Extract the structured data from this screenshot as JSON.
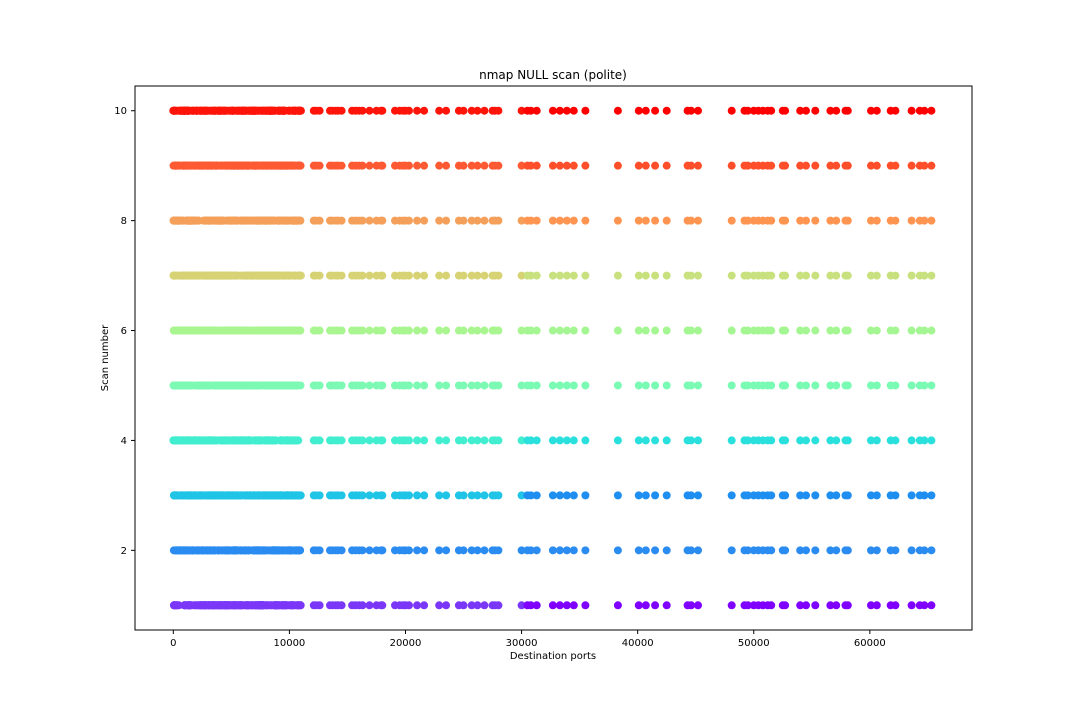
{
  "chart_data": {
    "type": "scatter",
    "title": "nmap NULL scan (polite)",
    "xlabel": "Destination ports",
    "ylabel": "Scan number",
    "xlim": [
      -3300,
      68800
    ],
    "ylim": [
      0.55,
      10.45
    ],
    "xticks": [
      0,
      10000,
      20000,
      30000,
      40000,
      50000,
      60000
    ],
    "yticks": [
      2,
      4,
      6,
      8,
      10
    ],
    "grid": false,
    "legend": "none",
    "colormap": "rainbow",
    "row_colors": {
      "1": "#7b37f7",
      "2": "#2a8cf0",
      "3": "#1fc4e6",
      "4": "#41eecf",
      "5": "#7cf9b2",
      "6": "#a9f590",
      "7": "#d7d375",
      "8": "#f4a05a",
      "9": "#fd5a33",
      "10": "#fe1408"
    },
    "row_colors_high_ports": {
      "1": "#7f00ff",
      "2": "#2a8cf0",
      "3": "#1e8ff0",
      "4": "#2ae0dc",
      "5": "#79fbb4",
      "6": "#a4f692",
      "7": "#c8e17e",
      "8": "#ff9550",
      "9": "#ff4e2a",
      "10": "#ff0000"
    },
    "dense_port_range": [
      0,
      11000
    ],
    "sparse_ports": [
      12100,
      12300,
      12600,
      13500,
      13700,
      14000,
      14200,
      14500,
      15400,
      15700,
      16000,
      16300,
      16900,
      17500,
      17900,
      18000,
      19100,
      19500,
      19800,
      20000,
      20300,
      21000,
      21600,
      22900,
      23500,
      24600,
      25000,
      25700,
      26200,
      26800,
      27500,
      27700,
      28000,
      30000,
      30500,
      30800,
      31300,
      32700,
      33300,
      33900,
      34500,
      35500,
      38300,
      40100,
      40700,
      41500,
      42500,
      44300,
      44600,
      45200,
      48100,
      49200,
      49500,
      50000,
      50400,
      50800,
      51200,
      51500,
      52500,
      52700,
      54000,
      54500,
      55300,
      56600,
      57100,
      57900,
      58100,
      60100,
      60600,
      61800,
      62200,
      63600,
      64300,
      64700,
      65300
    ],
    "scan_numbers": [
      1,
      2,
      3,
      4,
      5,
      6,
      7,
      8,
      9,
      10
    ]
  }
}
